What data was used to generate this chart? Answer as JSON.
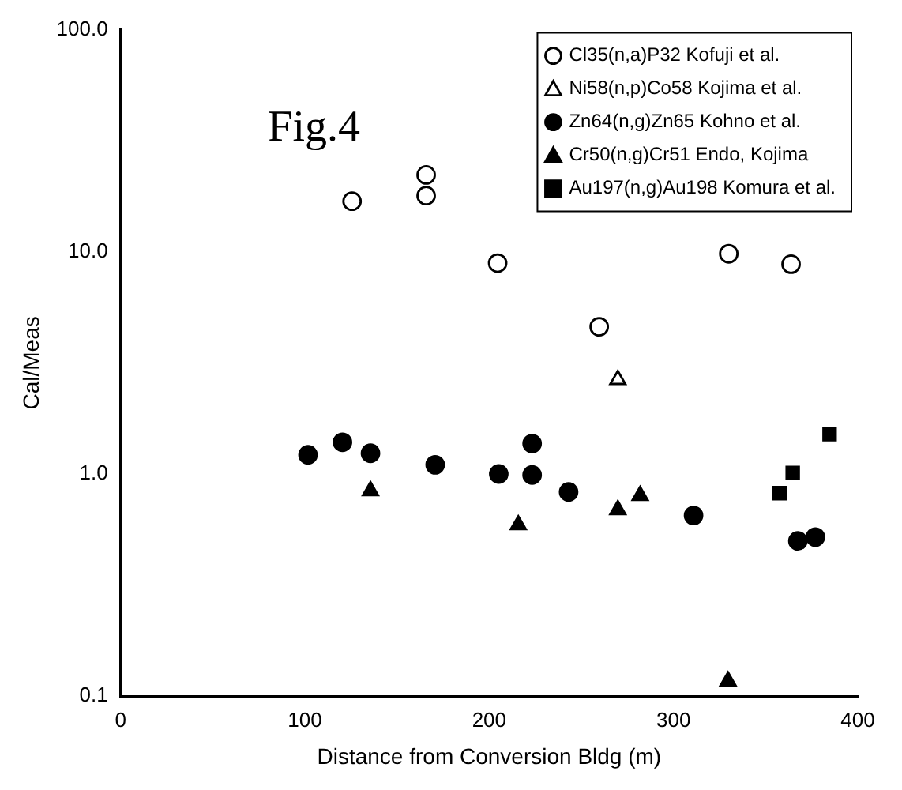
{
  "chart_data": {
    "type": "scatter",
    "xlabel": "Distance from Conversion Bldg (m)",
    "ylabel": "Cal/Meas",
    "annotations": [
      "Fig.4"
    ],
    "log": "y",
    "xlim": [
      0,
      400
    ],
    "xticks": [
      0,
      100,
      200,
      300,
      400
    ],
    "ylim": [
      0.1,
      100
    ],
    "yticks": [
      {
        "value": 0.1,
        "label": "0.1"
      },
      {
        "value": 1,
        "label": "1.0"
      },
      {
        "value": 10,
        "label": "10.0"
      },
      {
        "value": 100,
        "label": "100.0"
      }
    ],
    "grid": false,
    "legend": "top right",
    "series": [
      {
        "name": "Cl35(n,a)P32 Kofuji et al.",
        "color": "#ffffff",
        "marker": "circle",
        "x": [
          125.6,
          165.8,
          165.8,
          204.6,
          259.7,
          330,
          363.8
        ],
        "values": [
          16.9,
          22.2,
          17.9,
          8.9,
          4.6,
          9.8,
          8.8
        ]
      },
      {
        "name": "Ni58(n,p)Co58 Kojima et al.",
        "color": "#ffffff",
        "marker": "triangle",
        "x": [
          269.8
        ],
        "values": [
          2.66
        ]
      },
      {
        "name": "Zn64(n,g)Zn65 Kohno et al.",
        "color": "#000000",
        "marker": "circle",
        "x": [
          101.7,
          120.4,
          135.6,
          170.7,
          205.2,
          223.3,
          223.3,
          243.1,
          310.9,
          367.5,
          377
        ],
        "values": [
          1.22,
          1.39,
          1.24,
          1.1,
          1.0,
          1.37,
          0.99,
          0.83,
          0.65,
          0.5,
          0.52
        ]
      },
      {
        "name": "Cr50(n,g)Cr51 Endo, Kojima",
        "color": "#000000",
        "marker": "triangle",
        "x": [
          135.6,
          215.8,
          269.8,
          281.9,
          329.6
        ],
        "values": [
          0.84,
          0.59,
          0.69,
          0.8,
          0.117
        ]
      },
      {
        "name": "Au197(n,g)Au198 Komura et al.",
        "color": "#000000",
        "marker": "square",
        "x": [
          357.5,
          364.7,
          384.7
        ],
        "values": [
          0.82,
          1.01,
          1.51
        ]
      }
    ]
  }
}
